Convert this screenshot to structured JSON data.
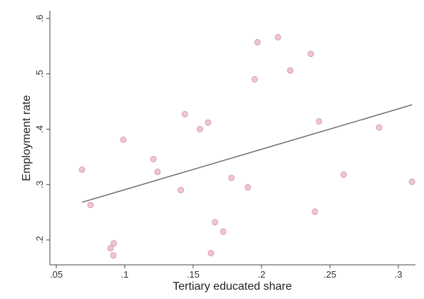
{
  "chart_data": {
    "type": "scatter",
    "xlabel": "Tertiary educated share",
    "ylabel": "Employment rate",
    "x": [
      0.0688,
      0.075,
      0.099,
      0.0896,
      0.092,
      0.0917,
      0.121,
      0.124,
      0.144,
      0.141,
      0.155,
      0.161,
      0.163,
      0.166,
      0.172,
      0.178,
      0.19,
      0.195,
      0.197,
      0.212,
      0.221,
      0.236,
      0.242,
      0.239,
      0.26,
      0.286,
      0.31
    ],
    "values": [
      0.327,
      0.263,
      0.381,
      0.185,
      0.194,
      0.172,
      0.346,
      0.323,
      0.427,
      0.29,
      0.4,
      0.412,
      0.176,
      0.232,
      0.215,
      0.312,
      0.295,
      0.49,
      0.557,
      0.566,
      0.506,
      0.536,
      0.414,
      0.251,
      0.318,
      0.403,
      0.305
    ],
    "color": "#e8b4c2",
    "fit": {
      "x": [
        0.0688,
        0.31
      ],
      "values": [
        0.268,
        0.444
      ],
      "color": "#666666"
    },
    "xlim": [
      0.0453,
      0.3125
    ],
    "ylim": [
      0.155,
      0.614
    ],
    "xticks": [
      {
        "value": 0.05,
        "label": ".05"
      },
      {
        "value": 0.1,
        "label": ".1"
      },
      {
        "value": 0.15,
        "label": ".15"
      },
      {
        "value": 0.2,
        "label": ".2"
      },
      {
        "value": 0.25,
        "label": ".25"
      },
      {
        "value": 0.3,
        "label": ".3"
      }
    ],
    "yticks": [
      {
        "value": 0.2,
        "label": ".2"
      },
      {
        "value": 0.3,
        "label": ".3"
      },
      {
        "value": 0.4,
        "label": ".4"
      },
      {
        "value": 0.5,
        "label": ".5"
      },
      {
        "value": 0.6,
        "label": ".6"
      }
    ],
    "grid": false
  }
}
